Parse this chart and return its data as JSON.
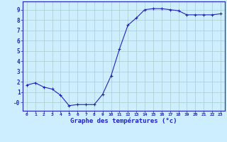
{
  "x": [
    0,
    1,
    2,
    3,
    4,
    5,
    6,
    7,
    8,
    9,
    10,
    11,
    12,
    13,
    14,
    15,
    16,
    17,
    18,
    19,
    20,
    21,
    22,
    23
  ],
  "y": [
    1.7,
    1.9,
    1.5,
    1.3,
    0.7,
    -0.3,
    -0.2,
    -0.2,
    -0.2,
    0.8,
    2.6,
    5.2,
    7.5,
    8.2,
    9.0,
    9.1,
    9.1,
    9.0,
    8.9,
    8.5,
    8.5,
    8.5,
    8.5,
    8.6
  ],
  "line_color": "#2222bb",
  "marker": "+",
  "marker_size": 3,
  "bg_color": "#cceeff",
  "grid_color": "#aacccc",
  "xlabel": "Graphe des températures (°c)",
  "xlabel_color": "#2222bb",
  "tick_color": "#2222bb",
  "xlim_min": -0.5,
  "xlim_max": 23.5,
  "ylim_min": -0.8,
  "ylim_max": 9.8,
  "yticks": [
    0,
    1,
    2,
    3,
    4,
    5,
    6,
    7,
    8,
    9
  ],
  "ytick_labels": [
    "-0",
    "1",
    "2",
    "3",
    "4",
    "5",
    "6",
    "7",
    "8",
    "9"
  ],
  "xtick_labels": [
    "0",
    "1",
    "2",
    "3",
    "4",
    "5",
    "6",
    "7",
    "8",
    "9",
    "10",
    "11",
    "12",
    "13",
    "14",
    "15",
    "16",
    "17",
    "18",
    "19",
    "20",
    "21",
    "22",
    "23"
  ]
}
